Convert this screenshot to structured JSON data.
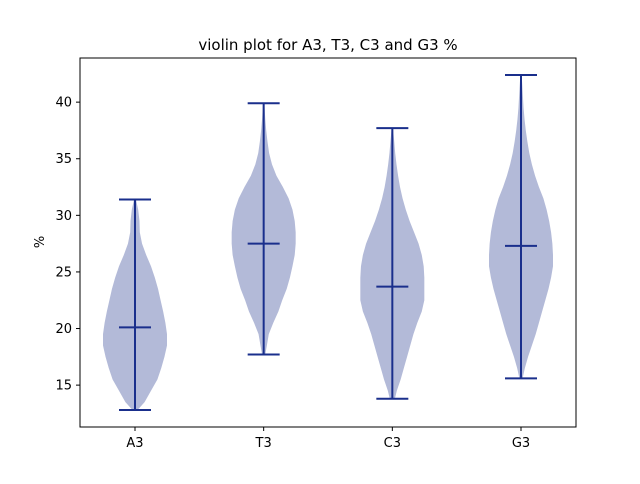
{
  "chart_data": {
    "type": "violin",
    "title": "violin plot for A3, T3, C3 and G3 %",
    "xlabel": "",
    "ylabel": "%",
    "ylim": [
      11.3,
      43.9
    ],
    "yticks": [
      15,
      20,
      25,
      30,
      35,
      40
    ],
    "categories": [
      "A3",
      "T3",
      "C3",
      "G3"
    ],
    "grid": false,
    "colors": {
      "body_fill": "#b3bad8",
      "lines": "#1a2f8c"
    },
    "violins": [
      {
        "category": "A3",
        "min": 12.8,
        "median": 20.1,
        "max": 31.4,
        "density_profile": [
          [
            12.8,
            0.08
          ],
          [
            13.5,
            0.3
          ],
          [
            14.5,
            0.5
          ],
          [
            15.5,
            0.7
          ],
          [
            16.5,
            0.82
          ],
          [
            17.5,
            0.92
          ],
          [
            18.5,
            1.0
          ],
          [
            19.5,
            1.0
          ],
          [
            20.5,
            0.95
          ],
          [
            21.5,
            0.88
          ],
          [
            22.5,
            0.8
          ],
          [
            23.5,
            0.72
          ],
          [
            24.5,
            0.62
          ],
          [
            25.5,
            0.5
          ],
          [
            26.5,
            0.35
          ],
          [
            27.5,
            0.22
          ],
          [
            28.5,
            0.15
          ],
          [
            29.5,
            0.14
          ],
          [
            30.5,
            0.1
          ],
          [
            31.4,
            0.03
          ]
        ]
      },
      {
        "category": "T3",
        "min": 17.7,
        "median": 27.5,
        "max": 39.9,
        "density_profile": [
          [
            17.7,
            0.05
          ],
          [
            18.5,
            0.1
          ],
          [
            19.5,
            0.16
          ],
          [
            20.5,
            0.3
          ],
          [
            21.5,
            0.46
          ],
          [
            22.5,
            0.58
          ],
          [
            23.5,
            0.72
          ],
          [
            24.5,
            0.82
          ],
          [
            25.5,
            0.9
          ],
          [
            26.5,
            0.97
          ],
          [
            27.5,
            1.0
          ],
          [
            28.5,
            1.0
          ],
          [
            29.5,
            0.97
          ],
          [
            30.5,
            0.9
          ],
          [
            31.5,
            0.78
          ],
          [
            32.5,
            0.6
          ],
          [
            33.5,
            0.4
          ],
          [
            34.5,
            0.26
          ],
          [
            35.5,
            0.17
          ],
          [
            36.5,
            0.12
          ],
          [
            37.5,
            0.08
          ],
          [
            38.5,
            0.05
          ],
          [
            39.9,
            0.02
          ]
        ]
      },
      {
        "category": "C3",
        "min": 13.8,
        "median": 23.7,
        "max": 37.7,
        "density_profile": [
          [
            13.8,
            0.08
          ],
          [
            14.5,
            0.14
          ],
          [
            15.5,
            0.26
          ],
          [
            16.5,
            0.36
          ],
          [
            17.5,
            0.46
          ],
          [
            18.5,
            0.56
          ],
          [
            19.5,
            0.66
          ],
          [
            20.5,
            0.78
          ],
          [
            21.5,
            0.92
          ],
          [
            22.5,
            1.0
          ],
          [
            23.5,
            1.0
          ],
          [
            24.5,
            1.0
          ],
          [
            25.5,
            0.98
          ],
          [
            26.5,
            0.92
          ],
          [
            27.5,
            0.82
          ],
          [
            28.5,
            0.68
          ],
          [
            29.5,
            0.54
          ],
          [
            30.5,
            0.42
          ],
          [
            31.5,
            0.32
          ],
          [
            32.5,
            0.24
          ],
          [
            33.5,
            0.18
          ],
          [
            34.5,
            0.13
          ],
          [
            35.5,
            0.09
          ],
          [
            36.5,
            0.06
          ],
          [
            37.7,
            0.02
          ]
        ]
      },
      {
        "category": "G3",
        "min": 15.6,
        "median": 27.3,
        "max": 42.4,
        "density_profile": [
          [
            15.6,
            0.05
          ],
          [
            16.5,
            0.12
          ],
          [
            17.5,
            0.22
          ],
          [
            18.5,
            0.34
          ],
          [
            19.5,
            0.46
          ],
          [
            20.5,
            0.56
          ],
          [
            21.5,
            0.66
          ],
          [
            22.5,
            0.76
          ],
          [
            23.5,
            0.86
          ],
          [
            24.5,
            0.94
          ],
          [
            25.5,
            1.0
          ],
          [
            26.5,
            1.0
          ],
          [
            27.5,
            0.98
          ],
          [
            28.5,
            0.94
          ],
          [
            29.5,
            0.88
          ],
          [
            30.5,
            0.8
          ],
          [
            31.5,
            0.7
          ],
          [
            32.5,
            0.56
          ],
          [
            33.5,
            0.44
          ],
          [
            34.5,
            0.34
          ],
          [
            35.5,
            0.26
          ],
          [
            36.5,
            0.2
          ],
          [
            37.5,
            0.15
          ],
          [
            38.5,
            0.11
          ],
          [
            39.5,
            0.08
          ],
          [
            40.5,
            0.06
          ],
          [
            41.5,
            0.04
          ],
          [
            42.4,
            0.02
          ]
        ]
      }
    ]
  }
}
